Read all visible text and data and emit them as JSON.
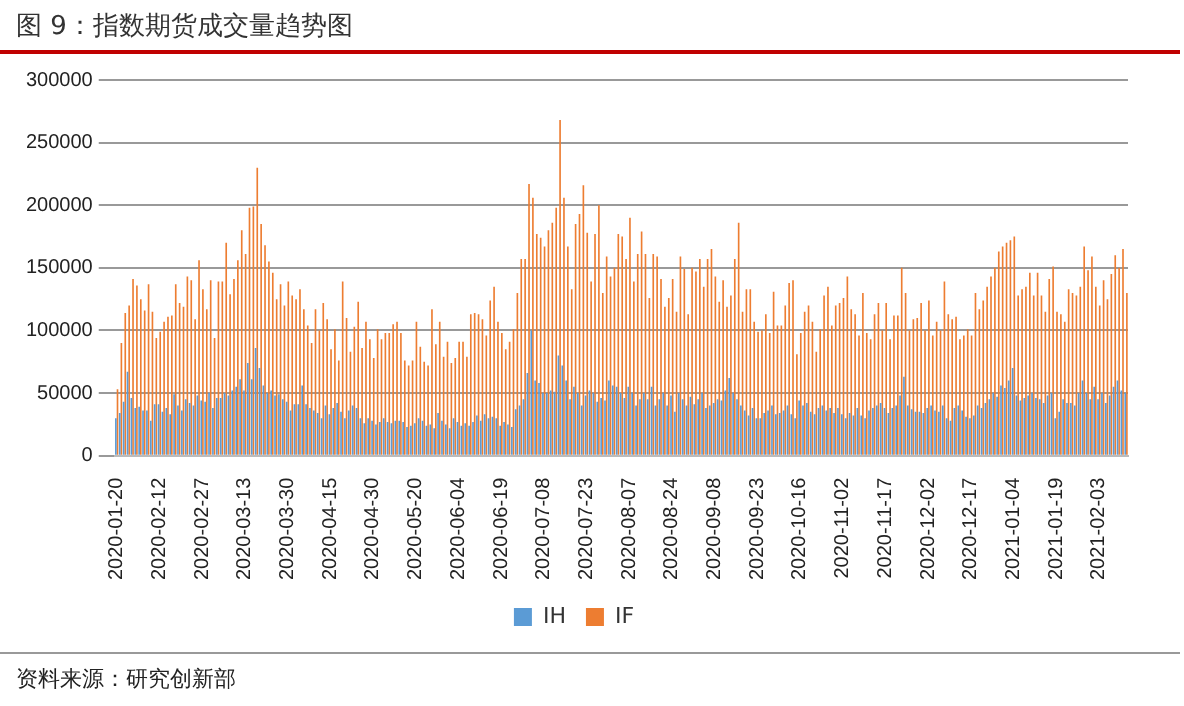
{
  "chart_data": {
    "type": "bar",
    "title": "图 9：指数期货成交量趋势图",
    "categories": [
      "2020-01-20",
      null,
      null,
      null,
      null,
      null,
      null,
      null,
      null,
      null,
      null,
      "2020-02-12",
      null,
      null,
      null,
      null,
      null,
      null,
      null,
      null,
      null,
      null,
      "2020-02-27",
      null,
      null,
      null,
      null,
      null,
      null,
      null,
      null,
      null,
      null,
      "2020-03-13",
      null,
      null,
      null,
      null,
      null,
      null,
      null,
      null,
      null,
      null,
      "2020-03-30",
      null,
      null,
      null,
      null,
      null,
      null,
      null,
      null,
      null,
      null,
      "2020-04-15",
      null,
      null,
      null,
      null,
      null,
      null,
      null,
      null,
      null,
      null,
      "2020-04-30",
      null,
      null,
      null,
      null,
      null,
      null,
      null,
      null,
      null,
      null,
      "2020-05-20",
      null,
      null,
      null,
      null,
      null,
      null,
      null,
      null,
      null,
      null,
      "2020-06-04",
      null,
      null,
      null,
      null,
      null,
      null,
      null,
      null,
      null,
      null,
      "2020-06-19",
      null,
      null,
      null,
      null,
      null,
      null,
      null,
      null,
      null,
      null,
      "2020-07-08",
      null,
      null,
      null,
      null,
      null,
      null,
      null,
      null,
      null,
      null,
      "2020-07-23",
      null,
      null,
      null,
      null,
      null,
      null,
      null,
      null,
      null,
      null,
      "2020-08-07",
      null,
      null,
      null,
      null,
      null,
      null,
      null,
      null,
      null,
      null,
      "2020-08-24",
      null,
      null,
      null,
      null,
      null,
      null,
      null,
      null,
      null,
      null,
      "2020-09-08",
      null,
      null,
      null,
      null,
      null,
      null,
      null,
      null,
      null,
      null,
      "2020-09-23",
      null,
      null,
      null,
      null,
      null,
      null,
      null,
      null,
      null,
      null,
      "2020-10-16",
      null,
      null,
      null,
      null,
      null,
      null,
      null,
      null,
      null,
      null,
      "2020-11-02",
      null,
      null,
      null,
      null,
      null,
      null,
      null,
      null,
      null,
      null,
      "2020-11-17",
      null,
      null,
      null,
      null,
      null,
      null,
      null,
      null,
      null,
      null,
      "2020-12-02",
      null,
      null,
      null,
      null,
      null,
      null,
      null,
      null,
      null,
      null,
      "2020-12-17",
      null,
      null,
      null,
      null,
      null,
      null,
      null,
      null,
      null,
      null,
      "2021-01-04",
      null,
      null,
      null,
      null,
      null,
      null,
      null,
      null,
      null,
      null,
      "2021-01-19",
      null,
      null,
      null,
      null,
      null,
      null,
      null,
      null,
      null,
      null,
      "2021-02-03",
      null,
      null,
      null,
      null,
      null,
      null,
      null
    ],
    "series": [
      {
        "name": "IH",
        "color": "#5b9bd5",
        "values": [
          30000,
          34000,
          43000,
          67000,
          46000,
          38000,
          39000,
          36000,
          36000,
          28000,
          41000,
          41000,
          35000,
          38000,
          33000,
          49000,
          40000,
          36000,
          45000,
          42000,
          40000,
          48000,
          44000,
          43000,
          50000,
          38000,
          46000,
          46000,
          50000,
          48000,
          52000,
          55000,
          61000,
          52000,
          74000,
          61000,
          86000,
          70000,
          56000,
          50000,
          52000,
          48000,
          49000,
          45000,
          43000,
          36000,
          41000,
          41000,
          56000,
          41000,
          38000,
          36000,
          34000,
          30000,
          40000,
          33000,
          38000,
          42000,
          35000,
          30000,
          36000,
          40000,
          38000,
          30000,
          26000,
          30000,
          28000,
          25000,
          27000,
          30000,
          27000,
          26000,
          28000,
          28000,
          27000,
          23000,
          24000,
          26000,
          30000,
          28000,
          24000,
          25000,
          22000,
          34000,
          28000,
          25000,
          22000,
          30000,
          27000,
          24000,
          26000,
          24000,
          27000,
          32000,
          28000,
          33000,
          30000,
          31000,
          30000,
          24000,
          27000,
          25000,
          23000,
          37000,
          40000,
          45000,
          66000,
          100000,
          60000,
          58000,
          50000,
          50000,
          52000,
          51000,
          80000,
          72000,
          60000,
          45000,
          55000,
          50000,
          40000,
          48000,
          52000,
          50000,
          43000,
          46000,
          44000,
          60000,
          56000,
          55000,
          50000,
          46000,
          55000,
          50000,
          40000,
          45000,
          50000,
          45000,
          55000,
          40000,
          45000,
          50000,
          40000,
          48000,
          35000,
          50000,
          45000,
          40000,
          47000,
          41000,
          45000,
          50000,
          38000,
          40000,
          42000,
          45000,
          44000,
          52000,
          62000,
          50000,
          45000,
          40000,
          36000,
          32000,
          38000,
          30000,
          30000,
          34000,
          36000,
          40000,
          33000,
          34000,
          36000,
          40000,
          33000,
          30000,
          44000,
          40000,
          42000,
          35000,
          33000,
          38000,
          40000,
          36000,
          38000,
          34000,
          38000,
          33000,
          30000,
          34000,
          32000,
          38000,
          32000,
          30000,
          36000,
          38000,
          40000,
          42000,
          38000,
          34000,
          38000,
          40000,
          48000,
          63000,
          40000,
          37000,
          35000,
          35000,
          34000,
          38000,
          40000,
          36000,
          35000,
          40000,
          30000,
          28000,
          38000,
          40000,
          36000,
          31000,
          30000,
          32000,
          40000,
          38000,
          42000,
          45000,
          50000,
          47000,
          56000,
          54000,
          60000,
          70000,
          48000,
          44000,
          46000,
          48000,
          50000,
          46000,
          45000,
          42000,
          48000,
          50000,
          30000,
          35000,
          45000,
          42000,
          42000,
          40000,
          50000,
          60000,
          50000,
          45000,
          55000,
          45000,
          50000,
          42000,
          48000,
          55000,
          60000,
          52000,
          50000
        ]
      },
      {
        "name": "IF",
        "color": "#ed7d31",
        "values": [
          53000,
          90000,
          114000,
          120000,
          141000,
          136000,
          125000,
          116000,
          137000,
          115000,
          94000,
          99000,
          107000,
          111000,
          112000,
          137000,
          122000,
          119000,
          143000,
          140000,
          109000,
          156000,
          133000,
          117000,
          140000,
          94000,
          139000,
          139000,
          170000,
          129000,
          141000,
          156000,
          180000,
          161000,
          198000,
          199000,
          230000,
          185000,
          168000,
          155000,
          146000,
          125000,
          137000,
          120000,
          139000,
          128000,
          125000,
          133000,
          117000,
          104000,
          90000,
          117000,
          100000,
          122000,
          109000,
          85000,
          101000,
          76000,
          139000,
          110000,
          83000,
          103000,
          123000,
          86000,
          107000,
          93000,
          78000,
          101000,
          93000,
          98000,
          98000,
          105000,
          107000,
          98000,
          76000,
          72000,
          76000,
          107000,
          87000,
          75000,
          72000,
          117000,
          89000,
          107000,
          79000,
          91000,
          74000,
          78000,
          91000,
          91000,
          79000,
          113000,
          114000,
          113000,
          109000,
          96000,
          124000,
          135000,
          107000,
          98000,
          85000,
          91000,
          101000,
          130000,
          157000,
          157000,
          217000,
          206000,
          177000,
          174000,
          167000,
          180000,
          186000,
          198000,
          268000,
          206000,
          167000,
          133000,
          185000,
          193000,
          216000,
          178000,
          139000,
          177000,
          200000,
          130000,
          159000,
          143000,
          150000,
          177000,
          175000,
          157000,
          190000,
          139000,
          161000,
          179000,
          161000,
          126000,
          161000,
          159000,
          141000,
          119000,
          126000,
          141000,
          115000,
          159000,
          149000,
          113000,
          150000,
          147000,
          157000,
          135000,
          157000,
          165000,
          143000,
          123000,
          140000,
          119000,
          128000,
          157000,
          186000,
          115000,
          133000,
          133000,
          107000,
          99000,
          100000,
          113000,
          98000,
          131000,
          104000,
          104000,
          120000,
          138000,
          140000,
          81000,
          98000,
          115000,
          120000,
          107000,
          83000,
          101000,
          128000,
          135000,
          104000,
          120000,
          122000,
          126000,
          143000,
          117000,
          113000,
          96000,
          130000,
          98000,
          93000,
          113000,
          122000,
          100000,
          122000,
          93000,
          112000,
          112000,
          150000,
          130000,
          100000,
          109000,
          110000,
          122000,
          100000,
          124000,
          96000,
          107000,
          100000,
          139000,
          113000,
          109000,
          111000,
          93000,
          96000,
          101000,
          96000,
          130000,
          117000,
          124000,
          135000,
          143000,
          150000,
          163000,
          167000,
          170000,
          172000,
          175000,
          128000,
          133000,
          135000,
          146000,
          128000,
          146000,
          128000,
          115000,
          141000,
          151000,
          115000,
          113000,
          107000,
          133000,
          130000,
          128000,
          135000,
          167000,
          148000,
          159000,
          135000,
          120000,
          140000,
          125000,
          145000,
          160000,
          150000,
          165000,
          130000
        ]
      }
    ],
    "ylim": [
      0,
      300000
    ],
    "yticks": [
      0,
      50000,
      100000,
      150000,
      200000,
      250000,
      300000
    ],
    "grid": "y",
    "legend": "bottom",
    "annotations": [
      "资料来源：研究创新部"
    ]
  }
}
